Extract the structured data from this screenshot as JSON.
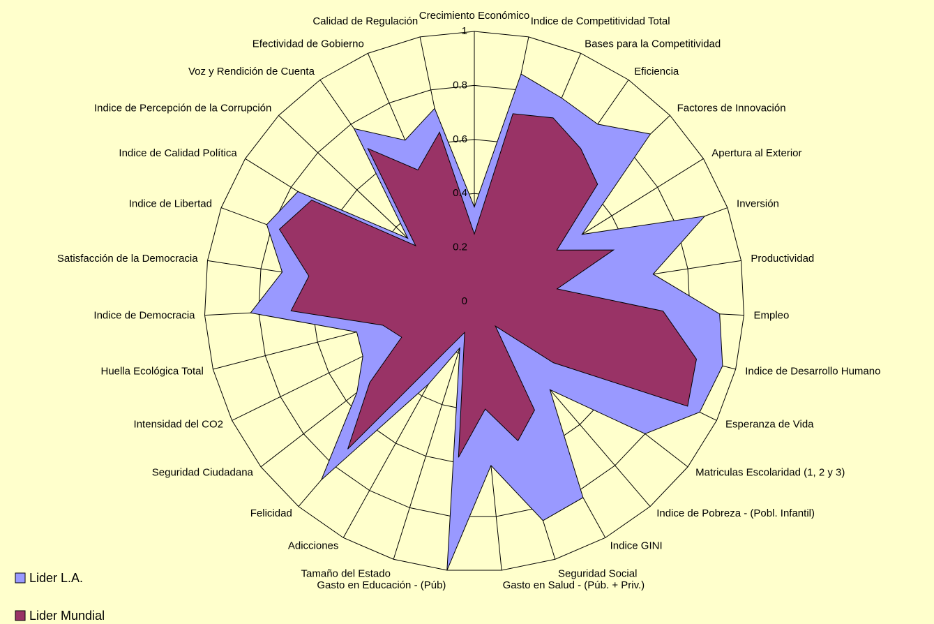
{
  "chart_data": {
    "type": "radar",
    "categories": [
      "Crecimiento Económico",
      "Indice de Competitividad Total",
      "Bases para la Competitividad",
      "Eficiencia",
      "Factores de Innovación",
      "Apertura al Exterior",
      "Inversión",
      "Productividad",
      "Empleo",
      "Indice de Desarrollo Humano",
      "Esperanza de Vida",
      "Matriculas Escolaridad (1, 2 y 3)",
      "Indice de Pobreza - (Pobl. Infantil)",
      "Indice GINI",
      "Seguridad Social",
      "Gasto en Salud - (Púb. + Priv.)",
      "Gasto en Educación - (Púb)",
      "Tamaño del Estado",
      "Adicciones",
      "Felicidad",
      "Seguridad Ciudadana",
      "Intensidad del CO2",
      "Huella Ecológica Total",
      "Indice de Democracia",
      "Satisfacción de la Democracia",
      "Indice de Libertad",
      "Indice de Calidad Política",
      "Indice de Percepción de la Corrupción",
      "Voz y Rendición de Cuenta",
      "Efectividad de Gobierno",
      "Calidad de Regulación"
    ],
    "series": [
      {
        "name": "Lider L.A.",
        "color": "#9999ff",
        "values": [
          0.35,
          0.86,
          0.82,
          0.8,
          0.9,
          0.47,
          0.91,
          0.67,
          0.91,
          0.95,
          0.93,
          0.8,
          0.43,
          0.83,
          0.85,
          0.61,
          1.0,
          0.18,
          0.35,
          0.87,
          0.55,
          0.46,
          0.45,
          0.83,
          0.72,
          0.82,
          0.77,
          0.34,
          0.78,
          0.65,
          0.73
        ]
      },
      {
        "name": "Lider Mundial",
        "color": "#993366",
        "values": [
          0.25,
          0.71,
          0.74,
          0.69,
          0.63,
          0.36,
          0.55,
          0.31,
          0.7,
          0.85,
          0.88,
          0.37,
          0.12,
          0.46,
          0.54,
          0.4,
          0.58,
          0.12,
          0.2,
          0.72,
          0.49,
          0.3,
          0.35,
          0.68,
          0.62,
          0.77,
          0.71,
          0.3,
          0.69,
          0.53,
          0.64
        ]
      }
    ],
    "ylim": [
      0,
      1
    ],
    "yticks": [
      0,
      0.2,
      0.4,
      0.6,
      0.8,
      1
    ],
    "grid": true,
    "legend": "bottom-left"
  }
}
